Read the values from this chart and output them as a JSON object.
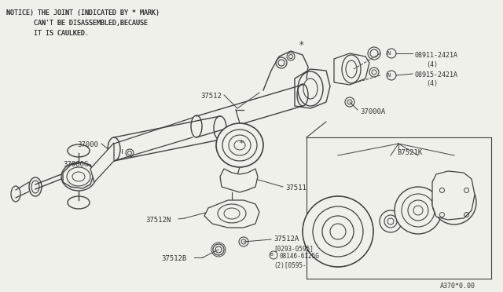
{
  "bg_color": "#f0f0ea",
  "line_color": "#404040",
  "text_color": "#303030",
  "notice_lines": [
    "NOTICE) THE JOINT (INDICATED BY * MARK)",
    "       CAN'T BE DISASSEMBLED,BECAUSE",
    "       IT IS CAULKED."
  ],
  "fig_w": 6.4,
  "fig_h": 3.72,
  "dpi": 100
}
